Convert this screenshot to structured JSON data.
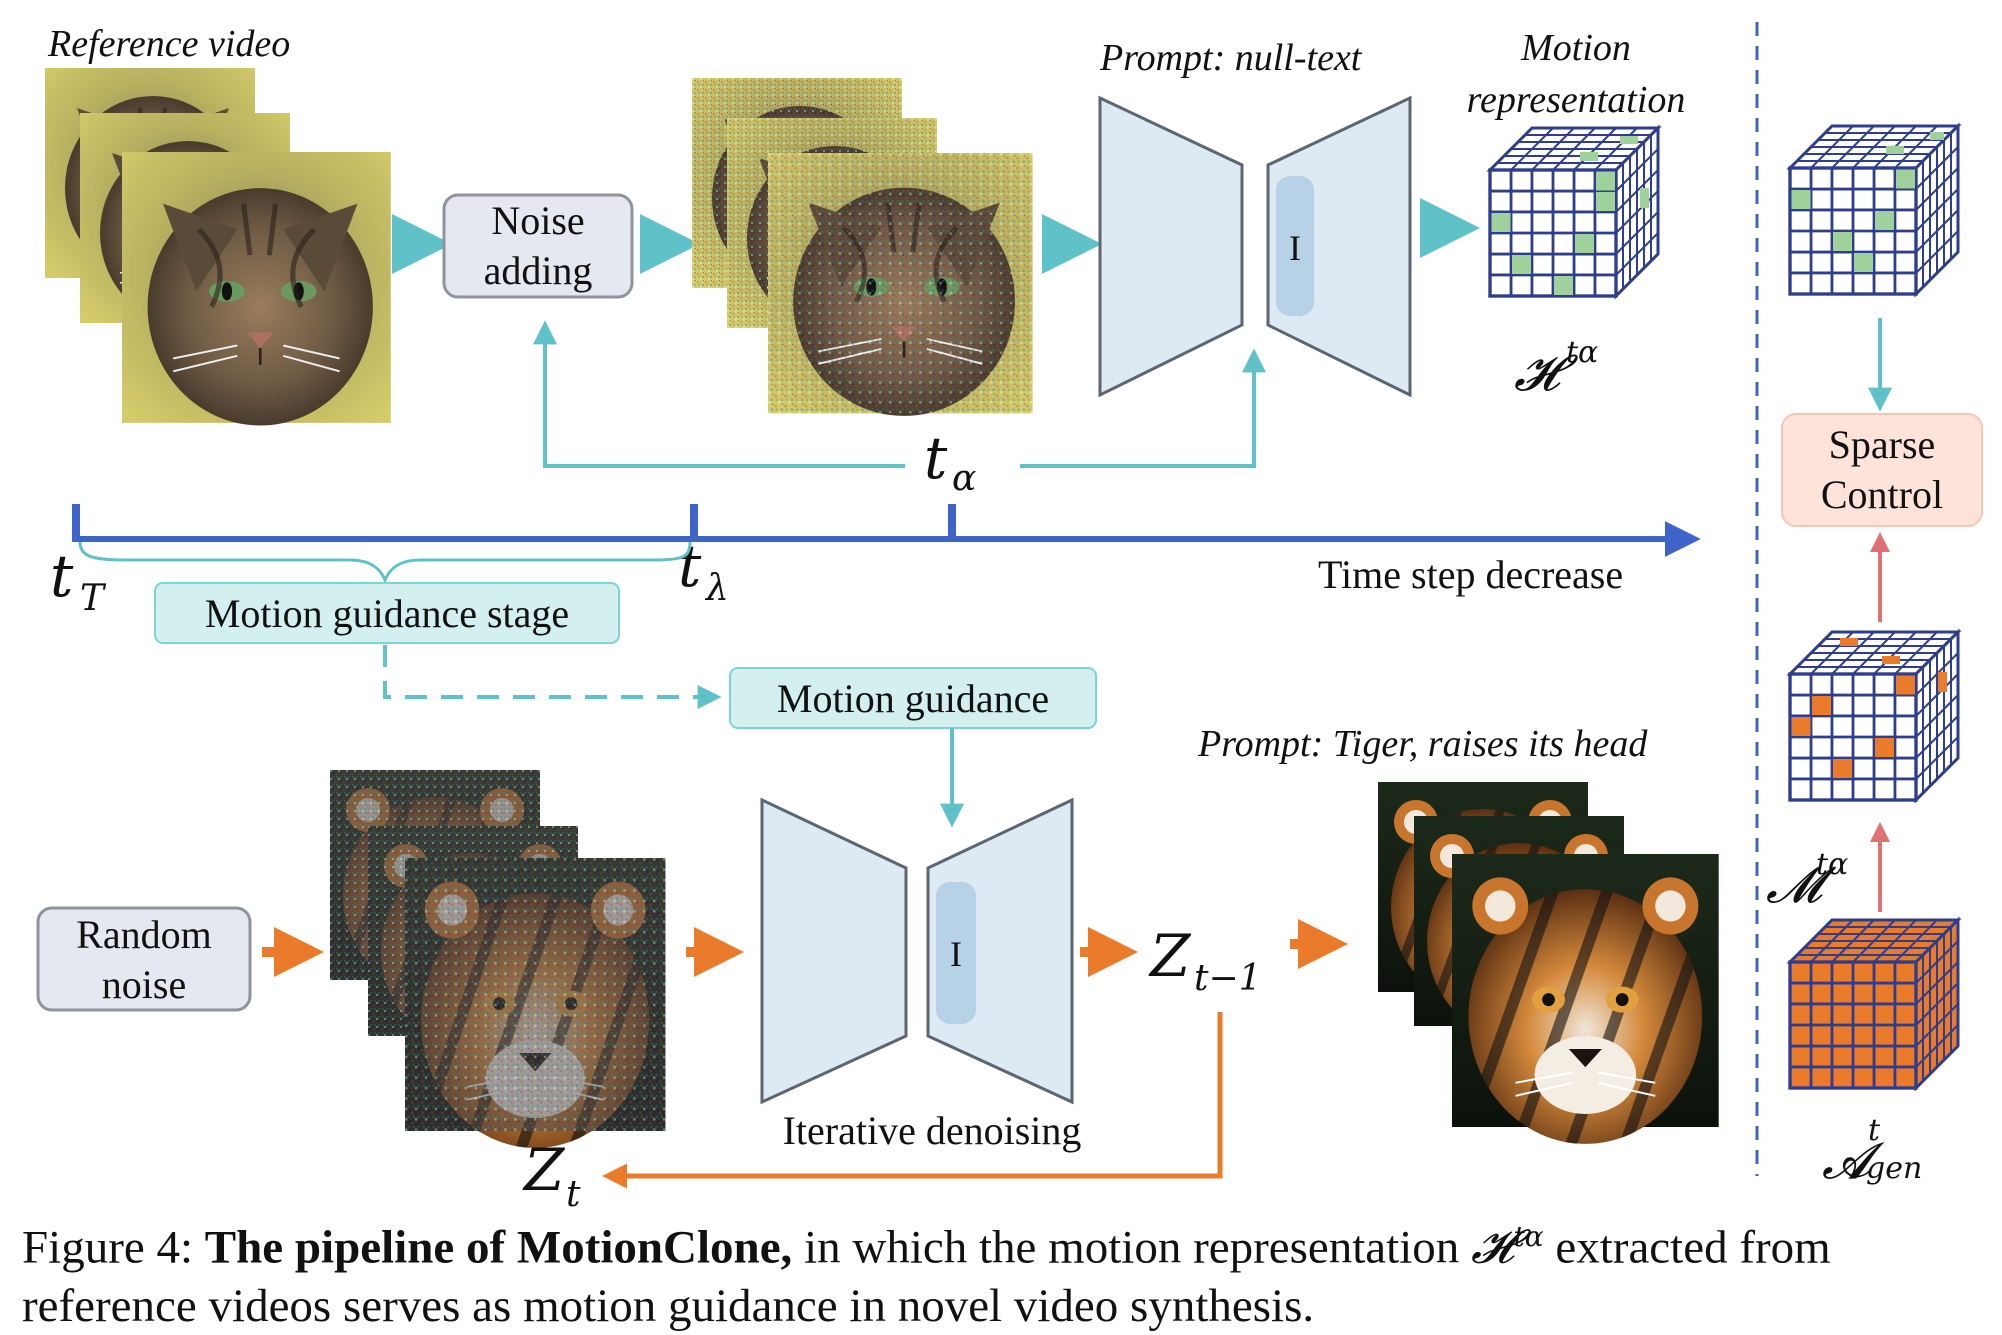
{
  "labels": {
    "reference_video": "Reference video",
    "noise_adding_1": "Noise",
    "noise_adding_2": "adding",
    "prompt_null": "Prompt: null-text",
    "motion_repr_1": "Motion",
    "motion_repr_2": "representation",
    "unet_block": "I",
    "t_alpha": "t",
    "t_alpha_sub": "α",
    "t_T": "t",
    "t_T_sub": "T",
    "t_lambda": "t",
    "t_lambda_sub": "λ",
    "time_step": "Time step decrease",
    "motion_guidance_stage": "Motion guidance stage",
    "motion_guidance": "Motion guidance",
    "prompt_tiger": "Prompt: Tiger, raises its head",
    "random_noise_1": "Random",
    "random_noise_2": "noise",
    "iterative_denoising": "Iterative denoising",
    "z_prev": "Z",
    "z_prev_sub": "t−1",
    "z_t": "Z",
    "z_t_sub": "t",
    "sparse_control_1": "Sparse",
    "sparse_control_2": "Control",
    "H_symbol": "𝓗",
    "H_sup": "tα",
    "M_symbol": "𝓜",
    "M_sup": "tα",
    "A_symbol": "𝓐",
    "A_sup": "t",
    "A_sub": "gen"
  },
  "caption": {
    "prefix": "Figure 4: ",
    "bold": "The pipeline of MotionClone,",
    "text1": " in which the motion representation ",
    "symbol": "𝓗",
    "sup": "tα",
    "text2": " extracted from reference videos serves as motion guidance in novel video synthesis."
  },
  "colors": {
    "teal": "#5ec2c8",
    "blue": "#3e63c9",
    "orange": "#ea7b2a",
    "green_cell": "#9fd29a",
    "orange_cell": "#ea7b2a",
    "pink_arrow": "#e07276",
    "unet_fill": "#dde9f3",
    "unet_stroke": "#5d6570"
  },
  "icons": {
    "reference_frames": "cat-photo-stack",
    "noisy_frames": "noisy-cat-photo-stack",
    "generated_frames": "tiger-photo-stack",
    "noise_frames": "noisy-tiger-photo-stack"
  }
}
